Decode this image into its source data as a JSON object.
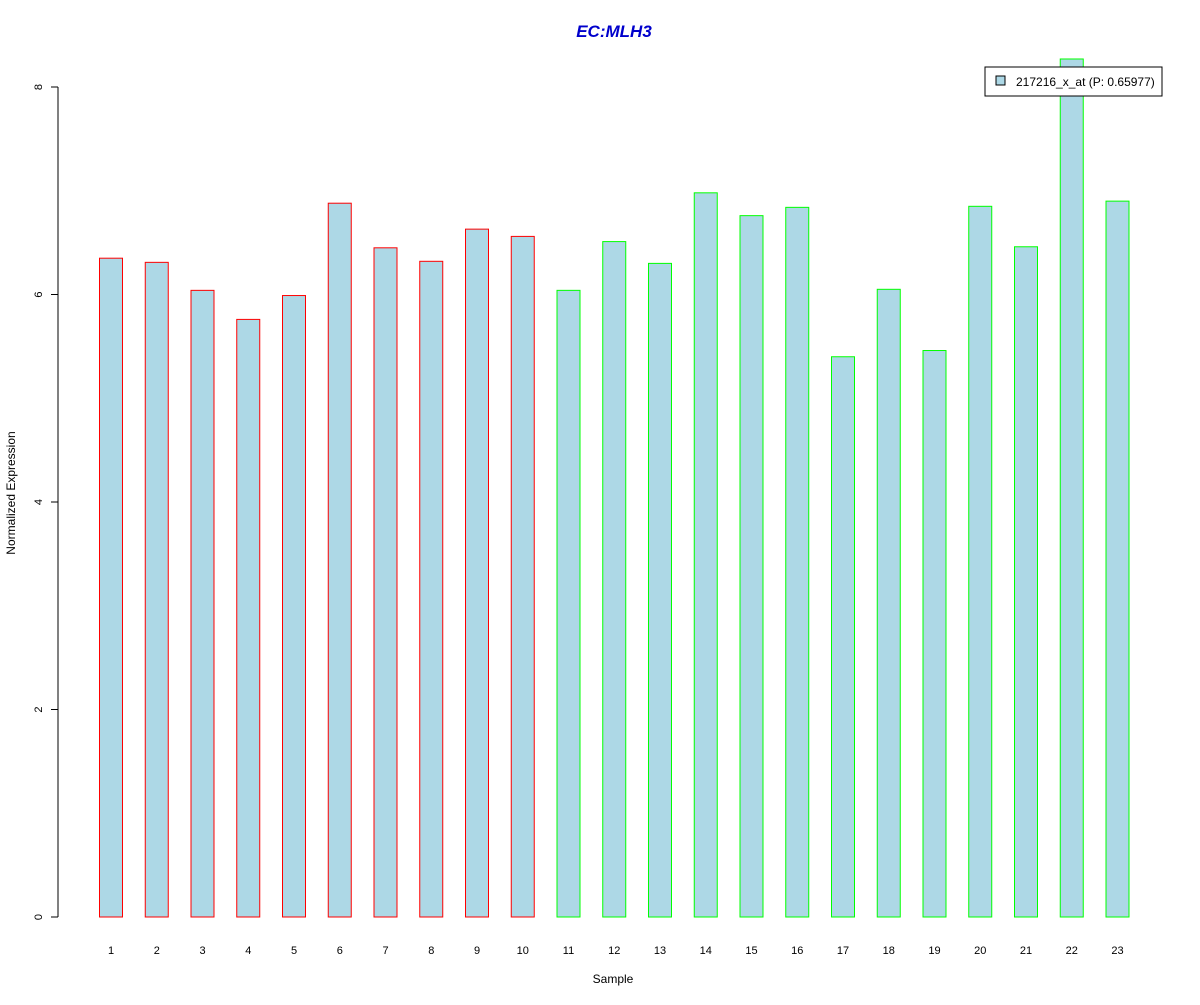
{
  "chart_data": {
    "type": "bar",
    "title": "EC:MLH3",
    "xlabel": "Sample",
    "ylabel": "Normalized Expression",
    "ylim": [
      0,
      8.3
    ],
    "yticks": [
      0,
      2,
      4,
      6,
      8
    ],
    "grid": false,
    "legend_position": "top-right",
    "legend_label": "217216_x_at (P: 0.65977)",
    "categories": [
      "1",
      "2",
      "3",
      "4",
      "5",
      "6",
      "7",
      "8",
      "9",
      "10",
      "11",
      "12",
      "13",
      "14",
      "15",
      "16",
      "17",
      "18",
      "19",
      "20",
      "21",
      "22",
      "23"
    ],
    "values": [
      6.35,
      6.31,
      6.04,
      5.76,
      5.99,
      6.88,
      6.45,
      6.32,
      6.63,
      6.56,
      6.04,
      6.51,
      6.3,
      6.98,
      6.76,
      6.84,
      5.4,
      6.05,
      5.46,
      6.85,
      6.46,
      8.27,
      6.9
    ],
    "groups": [
      "red",
      "red",
      "red",
      "red",
      "red",
      "red",
      "red",
      "red",
      "red",
      "red",
      "green",
      "green",
      "green",
      "green",
      "green",
      "green",
      "green",
      "green",
      "green",
      "green",
      "green",
      "green",
      "green"
    ],
    "colors": {
      "bar_fill": "#ADD8E6",
      "red": "#FF0000",
      "green": "#00FF00",
      "title": "#0000CC"
    }
  }
}
